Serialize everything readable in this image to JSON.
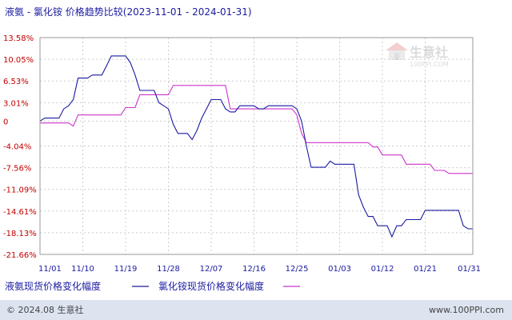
{
  "chart_data": {
    "type": "line",
    "title": "液氨 - 氯化铵 价格趋势比较(2023-11-01 - 2024-01-31)",
    "y_ticks": [
      "13.58%",
      "10.05%",
      "6.53%",
      "3.01%",
      "0",
      "-4.04%",
      "-7.56%",
      "-11.09%",
      "-14.61%",
      "-18.13%",
      "-21.66%"
    ],
    "y_tick_values": [
      13.58,
      10.05,
      6.53,
      3.01,
      0,
      -4.04,
      -7.56,
      -11.09,
      -14.61,
      -18.13,
      -21.66
    ],
    "ylim": [
      -21.66,
      13.58
    ],
    "x_ticks": [
      "11/01",
      "11/10",
      "11/19",
      "11/28",
      "12/07",
      "12/16",
      "12/25",
      "01/03",
      "01/12",
      "01/21",
      "01/31"
    ],
    "x_tick_days": [
      0,
      9,
      18,
      27,
      36,
      45,
      54,
      63,
      72,
      81,
      91
    ],
    "xlim": [
      0,
      91
    ],
    "grid": true,
    "series": [
      {
        "name": "液氨现货价格变化幅度",
        "color": "#1a1aa0",
        "points": [
          [
            0,
            0
          ],
          [
            1,
            0.5
          ],
          [
            2,
            0.5
          ],
          [
            3,
            0.5
          ],
          [
            4,
            0.5
          ],
          [
            5,
            2.0
          ],
          [
            6,
            2.5
          ],
          [
            7,
            3.5
          ],
          [
            8,
            7.0
          ],
          [
            9,
            7.0
          ],
          [
            10,
            7.0
          ],
          [
            11,
            7.5
          ],
          [
            12,
            7.5
          ],
          [
            13,
            7.5
          ],
          [
            14,
            9.0
          ],
          [
            15,
            10.6
          ],
          [
            16,
            10.6
          ],
          [
            17,
            10.6
          ],
          [
            18,
            10.6
          ],
          [
            19,
            9.5
          ],
          [
            20,
            7.5
          ],
          [
            21,
            5.0
          ],
          [
            22,
            5.0
          ],
          [
            23,
            5.0
          ],
          [
            24,
            5.0
          ],
          [
            25,
            3.0
          ],
          [
            26,
            2.5
          ],
          [
            27,
            2.0
          ],
          [
            28,
            -0.5
          ],
          [
            29,
            -2.0
          ],
          [
            30,
            -2.0
          ],
          [
            31,
            -2.0
          ],
          [
            32,
            -3.0
          ],
          [
            33,
            -1.5
          ],
          [
            34,
            0.5
          ],
          [
            35,
            2.0
          ],
          [
            36,
            3.5
          ],
          [
            37,
            3.5
          ],
          [
            38,
            3.5
          ],
          [
            39,
            2.0
          ],
          [
            40,
            1.5
          ],
          [
            41,
            1.5
          ],
          [
            42,
            2.5
          ],
          [
            43,
            2.5
          ],
          [
            44,
            2.5
          ],
          [
            45,
            2.5
          ],
          [
            46,
            2.0
          ],
          [
            47,
            2.0
          ],
          [
            48,
            2.5
          ],
          [
            49,
            2.5
          ],
          [
            50,
            2.5
          ],
          [
            51,
            2.5
          ],
          [
            52,
            2.5
          ],
          [
            53,
            2.5
          ],
          [
            54,
            2.0
          ],
          [
            55,
            0.0
          ],
          [
            56,
            -4.0
          ],
          [
            57,
            -7.5
          ],
          [
            58,
            -7.5
          ],
          [
            59,
            -7.5
          ],
          [
            60,
            -7.5
          ],
          [
            61,
            -6.5
          ],
          [
            62,
            -7.0
          ],
          [
            63,
            -7.0
          ],
          [
            64,
            -7.0
          ],
          [
            65,
            -7.0
          ],
          [
            66,
            -7.0
          ],
          [
            67,
            -12.0
          ],
          [
            68,
            -14.0
          ],
          [
            69,
            -15.5
          ],
          [
            70,
            -15.5
          ],
          [
            71,
            -17.0
          ],
          [
            72,
            -17.0
          ],
          [
            73,
            -17.0
          ],
          [
            74,
            -18.8
          ],
          [
            75,
            -17.0
          ],
          [
            76,
            -17.0
          ],
          [
            77,
            -16.0
          ],
          [
            78,
            -16.0
          ],
          [
            79,
            -16.0
          ],
          [
            80,
            -16.0
          ],
          [
            81,
            -14.5
          ],
          [
            82,
            -14.5
          ],
          [
            83,
            -14.5
          ],
          [
            84,
            -14.5
          ],
          [
            85,
            -14.5
          ],
          [
            86,
            -14.5
          ],
          [
            87,
            -14.5
          ],
          [
            88,
            -14.5
          ],
          [
            89,
            -17.0
          ],
          [
            90,
            -17.5
          ],
          [
            91,
            -17.5
          ]
        ]
      },
      {
        "name": "氯化铵现货价格变化幅度",
        "color": "#cc33cc",
        "points": [
          [
            0,
            -0.3
          ],
          [
            1,
            -0.3
          ],
          [
            2,
            -0.3
          ],
          [
            3,
            -0.3
          ],
          [
            4,
            -0.3
          ],
          [
            5,
            -0.3
          ],
          [
            6,
            -0.3
          ],
          [
            7,
            -0.8
          ],
          [
            8,
            1.0
          ],
          [
            9,
            1.0
          ],
          [
            10,
            1.0
          ],
          [
            11,
            1.0
          ],
          [
            12,
            1.0
          ],
          [
            13,
            1.0
          ],
          [
            14,
            1.0
          ],
          [
            15,
            1.0
          ],
          [
            16,
            1.0
          ],
          [
            17,
            1.0
          ],
          [
            18,
            2.2
          ],
          [
            19,
            2.2
          ],
          [
            20,
            2.2
          ],
          [
            21,
            4.3
          ],
          [
            22,
            4.3
          ],
          [
            23,
            4.3
          ],
          [
            24,
            4.3
          ],
          [
            25,
            4.3
          ],
          [
            26,
            4.3
          ],
          [
            27,
            4.3
          ],
          [
            28,
            5.8
          ],
          [
            29,
            5.8
          ],
          [
            30,
            5.8
          ],
          [
            31,
            5.8
          ],
          [
            32,
            5.8
          ],
          [
            33,
            5.8
          ],
          [
            34,
            5.8
          ],
          [
            35,
            5.8
          ],
          [
            36,
            5.8
          ],
          [
            37,
            5.8
          ],
          [
            38,
            5.8
          ],
          [
            39,
            5.8
          ],
          [
            40,
            2.0
          ],
          [
            41,
            2.0
          ],
          [
            42,
            2.0
          ],
          [
            43,
            2.0
          ],
          [
            44,
            2.0
          ],
          [
            45,
            2.0
          ],
          [
            46,
            2.0
          ],
          [
            47,
            2.0
          ],
          [
            48,
            2.0
          ],
          [
            49,
            2.0
          ],
          [
            50,
            2.0
          ],
          [
            51,
            2.0
          ],
          [
            52,
            2.0
          ],
          [
            53,
            2.0
          ],
          [
            54,
            1.0
          ],
          [
            55,
            -2.0
          ],
          [
            56,
            -3.5
          ],
          [
            57,
            -3.5
          ],
          [
            58,
            -3.5
          ],
          [
            59,
            -3.5
          ],
          [
            60,
            -3.5
          ],
          [
            61,
            -3.5
          ],
          [
            62,
            -3.5
          ],
          [
            63,
            -3.5
          ],
          [
            64,
            -3.5
          ],
          [
            65,
            -3.5
          ],
          [
            66,
            -3.5
          ],
          [
            67,
            -3.5
          ],
          [
            68,
            -3.5
          ],
          [
            69,
            -3.5
          ],
          [
            70,
            -4.2
          ],
          [
            71,
            -4.2
          ],
          [
            72,
            -5.5
          ],
          [
            73,
            -5.5
          ],
          [
            74,
            -5.5
          ],
          [
            75,
            -5.5
          ],
          [
            76,
            -5.5
          ],
          [
            77,
            -7.0
          ],
          [
            78,
            -7.0
          ],
          [
            79,
            -7.0
          ],
          [
            80,
            -7.0
          ],
          [
            81,
            -7.0
          ],
          [
            82,
            -7.0
          ],
          [
            83,
            -8.0
          ],
          [
            84,
            -8.0
          ],
          [
            85,
            -8.0
          ],
          [
            86,
            -8.5
          ],
          [
            87,
            -8.5
          ],
          [
            88,
            -8.5
          ],
          [
            89,
            -8.5
          ],
          [
            90,
            -8.5
          ],
          [
            91,
            -8.5
          ]
        ]
      }
    ]
  },
  "watermark": {
    "text": "生意社",
    "url": "100PPI.COM"
  },
  "footer": {
    "copyright": "© 2024.08 生意社",
    "site": "www.100PPI.com"
  },
  "colors": {
    "footer_bg": "#dde4f0",
    "ytick": "#c00000",
    "xtick": "#1a1aa0"
  }
}
